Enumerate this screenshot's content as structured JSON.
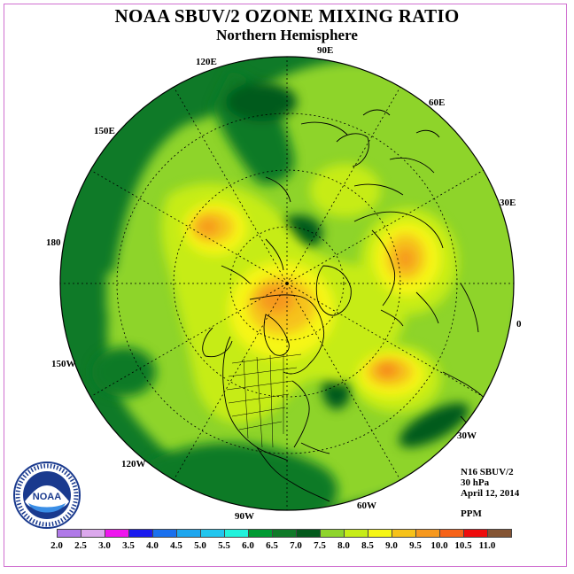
{
  "header": {
    "title": "NOAA SBUV/2 OZONE MIXING RATIO",
    "subtitle": "Northern Hemisphere"
  },
  "longitude_labels": {
    "e90": "90E",
    "e60": "60E",
    "e30": "30E",
    "zero": "0",
    "w30": "30W",
    "w60": "60W",
    "w90": "90W",
    "w120": "120W",
    "w150": "150W",
    "dl180": "180",
    "e150": "150E",
    "e120": "120E"
  },
  "info": {
    "instrument": "N16 SBUV/2",
    "level": "30 hPa",
    "date": "April 12, 2014",
    "units": "PPM"
  },
  "legend": {
    "ticks": [
      "2.0",
      "2.5",
      "3.0",
      "3.5",
      "4.0",
      "4.5",
      "5.0",
      "5.5",
      "6.0",
      "6.5",
      "7.0",
      "7.5",
      "8.0",
      "8.5",
      "9.0",
      "9.5",
      "10.0",
      "10.5",
      "11.0"
    ],
    "colors": [
      "#b07ae8",
      "#dba8ec",
      "#ee16ee",
      "#1a1aee",
      "#1a70ee",
      "#1ea6ee",
      "#22c6ee",
      "#22f2dc",
      "#009a32",
      "#0f7a28",
      "#035a1c",
      "#8ed42c",
      "#c6ec18",
      "#f6f614",
      "#f6c21a",
      "#f6981e",
      "#f66218",
      "#ee0c0c",
      "#845434"
    ]
  },
  "logo": {
    "text": "NOAA",
    "name": "noaa-logo"
  },
  "map": {
    "projection": "polar stereographic",
    "hemisphere": "northern"
  }
}
